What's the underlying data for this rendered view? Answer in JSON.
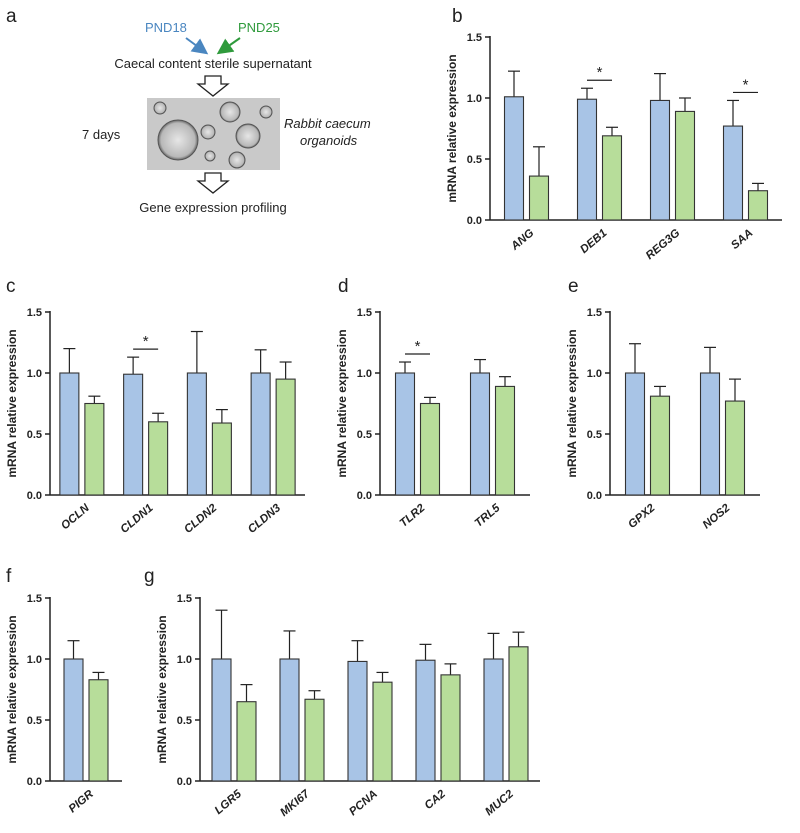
{
  "panel_letters": {
    "a": "a",
    "b": "b",
    "c": "c",
    "d": "d",
    "e": "e",
    "f": "f",
    "g": "g"
  },
  "colors": {
    "pnd18": "#a8c4e6",
    "pnd25": "#b7dd9a",
    "pnd18_text": "#4a86c0",
    "pnd25_text": "#2f9a3c"
  },
  "schematic": {
    "group1": "PND18",
    "group2": "PND25",
    "supernatant": "Caecal content sterile supernatant",
    "duration": "7 days",
    "organoid_line1": "Rabbit caecum",
    "organoid_line2": "organoids",
    "profiling": "Gene expression profiling"
  },
  "chart_data": [
    {
      "id": "b",
      "type": "bar",
      "ylabel": "mRNA relative expression",
      "ylim": [
        0,
        1.5
      ],
      "yticks": [
        "0.0",
        "0.5",
        "1.0",
        "1.5"
      ],
      "categories": [
        "ANG",
        "DEB1",
        "REG3G",
        "SAA"
      ],
      "series": [
        {
          "name": "PND18",
          "values": [
            1.01,
            0.99,
            0.98,
            0.77
          ],
          "errors": [
            0.21,
            0.09,
            0.22,
            0.21
          ]
        },
        {
          "name": "PND25",
          "values": [
            0.36,
            0.69,
            0.89,
            0.24
          ],
          "errors": [
            0.24,
            0.07,
            0.11,
            0.06
          ]
        }
      ],
      "significance": [
        {
          "category": "DEB1",
          "label": "*"
        },
        {
          "category": "SAA",
          "label": "*"
        }
      ]
    },
    {
      "id": "c",
      "type": "bar",
      "ylabel": "mRNA relative expression",
      "ylim": [
        0,
        1.5
      ],
      "yticks": [
        "0.0",
        "0.5",
        "1.0",
        "1.5"
      ],
      "categories": [
        "OCLN",
        "CLDN1",
        "CLDN2",
        "CLDN3"
      ],
      "series": [
        {
          "name": "PND18",
          "values": [
            1.0,
            0.99,
            1.0,
            1.0
          ],
          "errors": [
            0.2,
            0.14,
            0.34,
            0.19
          ]
        },
        {
          "name": "PND25",
          "values": [
            0.75,
            0.6,
            0.59,
            0.95
          ],
          "errors": [
            0.06,
            0.07,
            0.11,
            0.14
          ]
        }
      ],
      "significance": [
        {
          "category": "CLDN1",
          "label": "*"
        }
      ]
    },
    {
      "id": "d",
      "type": "bar",
      "ylabel": "mRNA relative expression",
      "ylim": [
        0,
        1.5
      ],
      "yticks": [
        "0.0",
        "0.5",
        "1.0",
        "1.5"
      ],
      "categories": [
        "TLR2",
        "TRL5"
      ],
      "series": [
        {
          "name": "PND18",
          "values": [
            1.0,
            1.0
          ],
          "errors": [
            0.09,
            0.11
          ]
        },
        {
          "name": "PND25",
          "values": [
            0.75,
            0.89
          ],
          "errors": [
            0.05,
            0.08
          ]
        }
      ],
      "significance": [
        {
          "category": "TLR2",
          "label": "*"
        }
      ]
    },
    {
      "id": "e",
      "type": "bar",
      "ylabel": "mRNA relative expression",
      "ylim": [
        0,
        1.5
      ],
      "yticks": [
        "0.0",
        "0.5",
        "1.0",
        "1.5"
      ],
      "categories": [
        "GPX2",
        "NOS2"
      ],
      "series": [
        {
          "name": "PND18",
          "values": [
            1.0,
            1.0
          ],
          "errors": [
            0.24,
            0.21
          ]
        },
        {
          "name": "PND25",
          "values": [
            0.81,
            0.77
          ],
          "errors": [
            0.08,
            0.18
          ]
        }
      ],
      "significance": []
    },
    {
      "id": "f",
      "type": "bar",
      "ylabel": "mRNA relative expression",
      "ylim": [
        0,
        1.5
      ],
      "yticks": [
        "0.0",
        "0.5",
        "1.0",
        "1.5"
      ],
      "categories": [
        "PIGR"
      ],
      "series": [
        {
          "name": "PND18",
          "values": [
            1.0
          ],
          "errors": [
            0.15
          ]
        },
        {
          "name": "PND25",
          "values": [
            0.83
          ],
          "errors": [
            0.06
          ]
        }
      ],
      "significance": []
    },
    {
      "id": "g",
      "type": "bar",
      "ylabel": "mRNA relative expression",
      "ylim": [
        0,
        1.5
      ],
      "yticks": [
        "0.0",
        "0.5",
        "1.0",
        "1.5"
      ],
      "categories": [
        "LGR5",
        "MKI67",
        "PCNA",
        "CA2",
        "MUC2"
      ],
      "series": [
        {
          "name": "PND18",
          "values": [
            1.0,
            1.0,
            0.98,
            0.99,
            1.0
          ],
          "errors": [
            0.4,
            0.23,
            0.17,
            0.13,
            0.21
          ]
        },
        {
          "name": "PND25",
          "values": [
            0.65,
            0.67,
            0.81,
            0.87,
            1.1
          ],
          "errors": [
            0.14,
            0.07,
            0.08,
            0.09,
            0.12
          ]
        }
      ],
      "significance": []
    }
  ]
}
